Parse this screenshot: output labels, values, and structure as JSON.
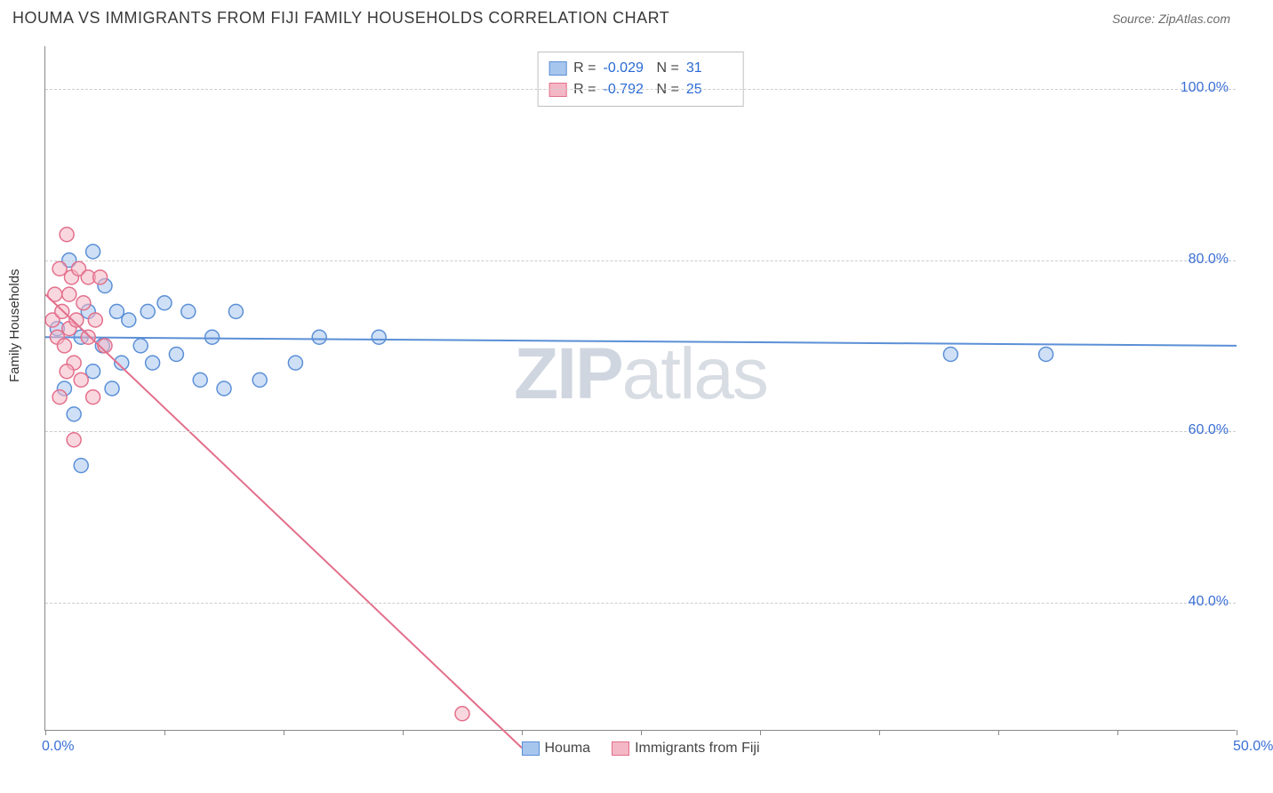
{
  "header": {
    "title": "HOUMA VS IMMIGRANTS FROM FIJI FAMILY HOUSEHOLDS CORRELATION CHART",
    "source": "Source: ZipAtlas.com"
  },
  "chart": {
    "type": "scatter",
    "ylabel": "Family Households",
    "background_color": "#ffffff",
    "grid_color": "#cccccc",
    "axis_color": "#888888",
    "value_color": "#3b6fd6",
    "xlim": [
      0,
      50
    ],
    "ylim": [
      25,
      105
    ],
    "xticks": [
      0,
      5,
      10,
      15,
      20,
      25,
      30,
      35,
      40,
      45,
      50
    ],
    "xtick_labels": {
      "0": "0.0%",
      "50": "50.0%"
    },
    "yticks": [
      40,
      60,
      80,
      100
    ],
    "ytick_labels": {
      "40": "40.0%",
      "60": "60.0%",
      "80": "80.0%",
      "100": "100.0%"
    },
    "marker_radius": 8,
    "marker_opacity": 0.55,
    "line_width": 2,
    "watermark": {
      "text_bold": "ZIP",
      "text_light": "atlas"
    }
  },
  "series": [
    {
      "name": "Houma",
      "color_fill": "#a7c6ee",
      "color_stroke": "#5b8fd6",
      "R": "-0.029",
      "N": "31",
      "points": [
        [
          0.5,
          72
        ],
        [
          0.8,
          65
        ],
        [
          1.0,
          80
        ],
        [
          1.2,
          62
        ],
        [
          1.5,
          71
        ],
        [
          1.5,
          56
        ],
        [
          1.8,
          74
        ],
        [
          2.0,
          67
        ],
        [
          2.0,
          81
        ],
        [
          2.4,
          70
        ],
        [
          2.5,
          77
        ],
        [
          2.8,
          65
        ],
        [
          3.0,
          74
        ],
        [
          3.2,
          68
        ],
        [
          3.5,
          73
        ],
        [
          4.0,
          70
        ],
        [
          4.3,
          74
        ],
        [
          4.5,
          68
        ],
        [
          5.0,
          75
        ],
        [
          5.5,
          69
        ],
        [
          6.0,
          74
        ],
        [
          6.5,
          66
        ],
        [
          7.0,
          71
        ],
        [
          7.5,
          65
        ],
        [
          8.0,
          74
        ],
        [
          9.0,
          66
        ],
        [
          10.5,
          68
        ],
        [
          11.5,
          71
        ],
        [
          14.0,
          71
        ],
        [
          38.0,
          69
        ],
        [
          42.0,
          69
        ]
      ],
      "regression": {
        "x1": 0,
        "y1": 71.0,
        "x2": 50,
        "y2": 70.0
      }
    },
    {
      "name": "Immigrants from Fiji",
      "color_fill": "#f4b7c5",
      "color_stroke": "#e36f8b",
      "R": "-0.792",
      "N": "25",
      "points": [
        [
          0.3,
          73
        ],
        [
          0.4,
          76
        ],
        [
          0.5,
          71
        ],
        [
          0.6,
          79
        ],
        [
          0.7,
          74
        ],
        [
          0.8,
          70
        ],
        [
          0.9,
          83
        ],
        [
          1.0,
          76
        ],
        [
          1.0,
          72
        ],
        [
          1.1,
          78
        ],
        [
          1.2,
          68
        ],
        [
          1.3,
          73
        ],
        [
          1.4,
          79
        ],
        [
          1.5,
          66
        ],
        [
          1.6,
          75
        ],
        [
          1.8,
          71
        ],
        [
          1.8,
          78
        ],
        [
          2.0,
          64
        ],
        [
          2.1,
          73
        ],
        [
          2.3,
          78
        ],
        [
          2.5,
          70
        ],
        [
          1.2,
          59
        ],
        [
          0.6,
          64
        ],
        [
          0.9,
          67
        ],
        [
          17.5,
          27
        ]
      ],
      "regression": {
        "x1": 0,
        "y1": 76.0,
        "x2": 20,
        "y2": 23.0
      }
    }
  ],
  "stats_box": {
    "r_label": "R =",
    "n_label": "N ="
  },
  "legend": {
    "items": [
      "Houma",
      "Immigrants from Fiji"
    ]
  }
}
